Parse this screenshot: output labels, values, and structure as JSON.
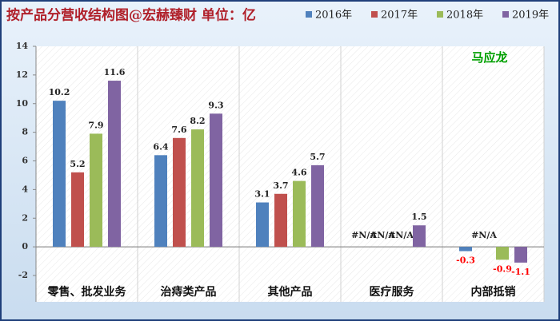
{
  "chart_data": {
    "type": "bar",
    "title": "按产品分营收结构图@宏赫臻财 单位：亿",
    "annotation": "马应龙",
    "categories": [
      "零售、批发业务",
      "治痔类产品",
      "其他产品",
      "医疗服务",
      "内部抵销"
    ],
    "series": [
      {
        "name": "2016年",
        "color": "#4f81bd",
        "values": [
          10.2,
          6.4,
          3.1,
          null,
          -0.3
        ],
        "value_labels": [
          "10.2",
          "6.4",
          "3.1",
          "#N/A",
          "-0.3"
        ]
      },
      {
        "name": "2017年",
        "color": "#c0504d",
        "values": [
          5.2,
          7.6,
          3.7,
          null,
          null
        ],
        "value_labels": [
          "5.2",
          "7.6",
          "3.7",
          "#N/A",
          "#N/A"
        ]
      },
      {
        "name": "2018年",
        "color": "#9bbb59",
        "values": [
          7.9,
          8.2,
          4.6,
          null,
          -0.9
        ],
        "value_labels": [
          "7.9",
          "8.2",
          "4.6",
          "#N/A",
          "-0.9"
        ]
      },
      {
        "name": "2019年",
        "color": "#8064a2",
        "values": [
          11.6,
          9.3,
          5.7,
          1.5,
          -1.1
        ]
      }
    ],
    "ylim": [
      -2,
      14
    ],
    "yticks": [
      -2,
      0,
      2,
      4,
      6,
      8,
      10,
      12,
      14
    ],
    "negative_label_color": "#ff0000"
  }
}
